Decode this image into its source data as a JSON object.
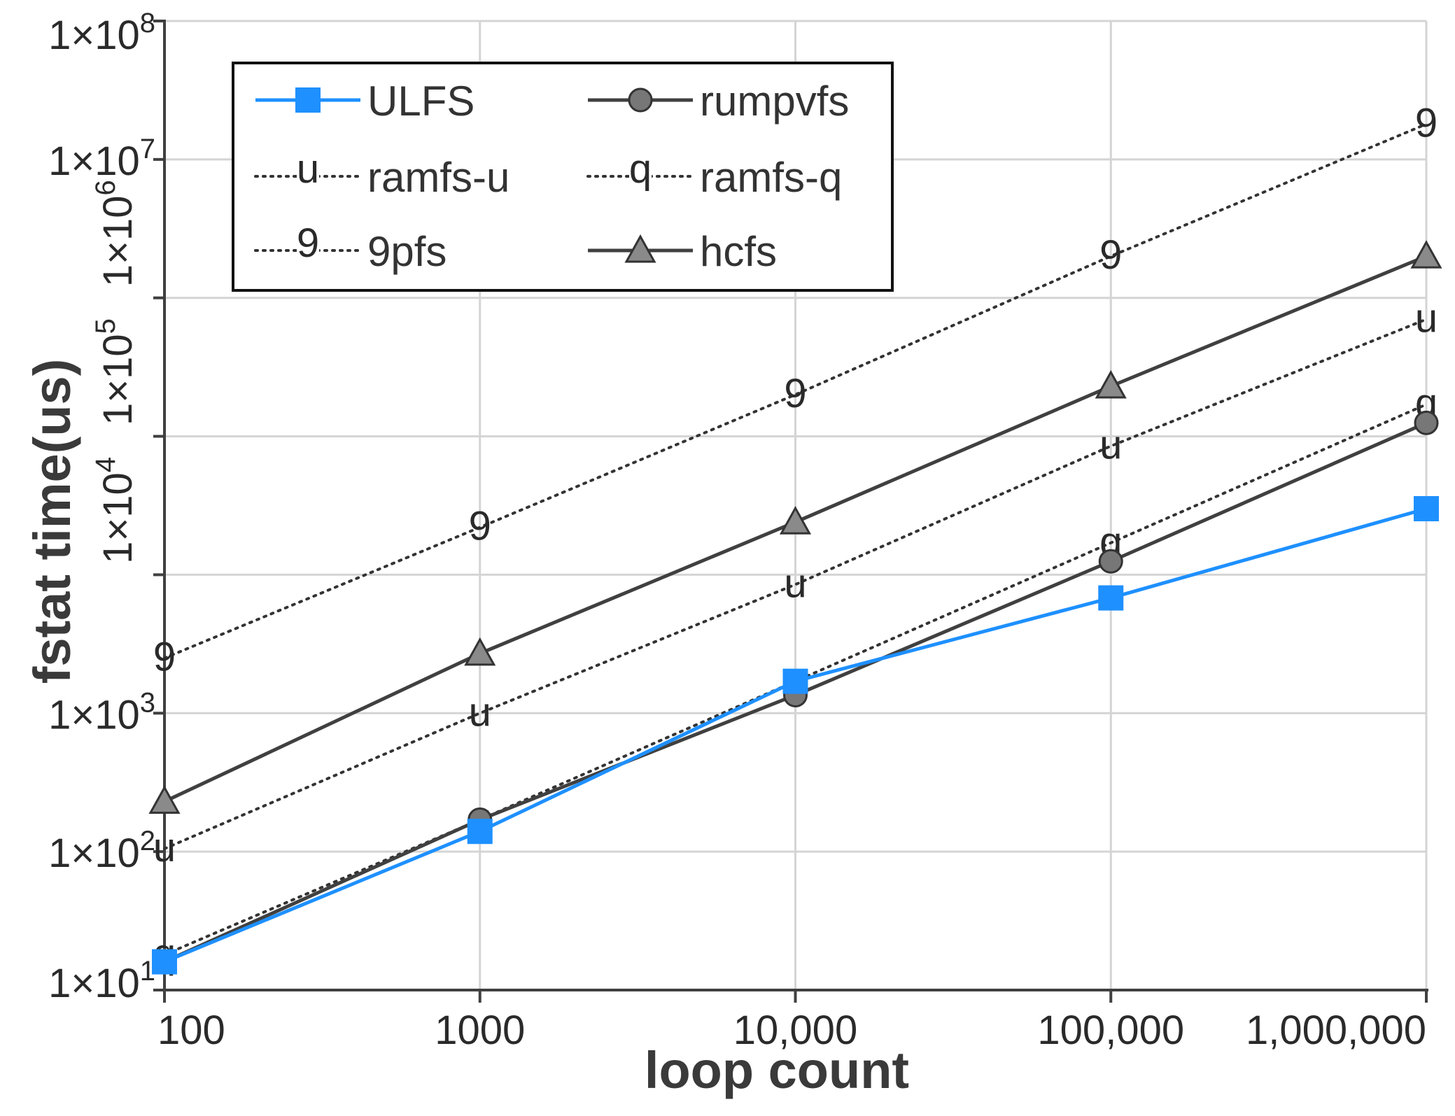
{
  "chart_data": {
    "type": "line",
    "xlabel": "loop count",
    "ylabel": "fstat time(us)",
    "x_scale": "log",
    "y_scale": "log",
    "x": [
      100,
      1000,
      10000,
      100000,
      1000000
    ],
    "x_tick_labels": [
      "100",
      "1000",
      "10,000",
      "100,000",
      "1,000,000"
    ],
    "ylim": [
      10,
      100000000
    ],
    "y_ticks": [
      {
        "value": 10,
        "base": "1×10",
        "exp": "1"
      },
      {
        "value": 100,
        "base": "1×10",
        "exp": "2"
      },
      {
        "value": 1000,
        "base": "1×10",
        "exp": "3"
      },
      {
        "value": 10000,
        "base": "1×10",
        "exp": "4"
      },
      {
        "value": 100000,
        "base": "1×10",
        "exp": "5"
      },
      {
        "value": 1000000,
        "base": "1×10",
        "exp": "6"
      },
      {
        "value": 10000000,
        "base": "1×10",
        "exp": "7"
      },
      {
        "value": 100000000,
        "base": "1×10",
        "exp": "8"
      }
    ],
    "grid": true,
    "legend_position": "top-left",
    "series": [
      {
        "name": "ULFS",
        "color": "#1e90ff",
        "line": "solid",
        "marker": "square",
        "marker_label": "",
        "values": [
          16,
          140,
          1700,
          6800,
          30000
        ]
      },
      {
        "name": "rumpvfs",
        "color": "#404040",
        "line": "solid",
        "marker": "circle",
        "marker_label": "",
        "values": [
          16,
          170,
          1350,
          12500,
          125000
        ]
      },
      {
        "name": "ramfs-u",
        "color": "#333333",
        "line": "dotted",
        "marker": "letter",
        "marker_label": "u",
        "values": [
          105,
          1000,
          8500,
          85000,
          700000
        ]
      },
      {
        "name": "ramfs-q",
        "color": "#333333",
        "line": "dotted",
        "marker": "letter",
        "marker_label": "q",
        "values": [
          18,
          170,
          1700,
          17000,
          170000
        ]
      },
      {
        "name": "9pfs",
        "color": "#333333",
        "line": "dotted",
        "marker": "letter",
        "marker_label": "9",
        "values": [
          2500,
          22000,
          200000,
          2000000,
          18000000
        ]
      },
      {
        "name": "hcfs",
        "color": "#404040",
        "line": "solid",
        "marker": "triangle",
        "marker_label": "",
        "values": [
          230,
          2700,
          24000,
          230000,
          2000000
        ]
      }
    ],
    "legend_rows": [
      [
        "ULFS",
        "rumpvfs"
      ],
      [
        "ramfs-u",
        "ramfs-q"
      ],
      [
        "9pfs",
        "hcfs"
      ]
    ]
  }
}
